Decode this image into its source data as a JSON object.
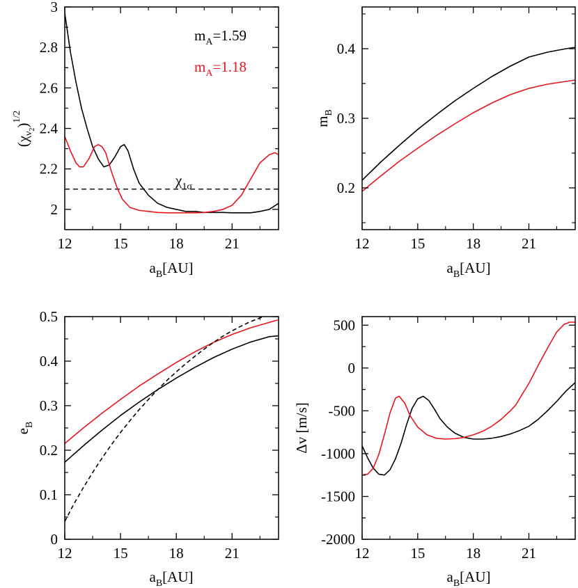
{
  "colors": {
    "black": "#000000",
    "red": "#e8141c"
  },
  "chart_data": [
    {
      "id": "chi",
      "type": "line",
      "xlabel": {
        "main": "a",
        "sub": "B",
        "rest": "[AU]"
      },
      "ylabel": {
        "open": "(χ",
        "sub": "ν",
        "subsub": "2",
        "close": ")",
        "sup": "1/2"
      },
      "xlim": [
        12,
        23.5
      ],
      "ylim": [
        1.9,
        3.0
      ],
      "xticks": [
        12,
        15,
        18,
        21
      ],
      "xtick_labels": [
        "12",
        "15",
        "18",
        "21"
      ],
      "yticks": [
        2.0,
        2.2,
        2.4,
        2.6,
        2.8,
        3.0
      ],
      "ytick_labels": [
        "2",
        "2.2",
        "2.4",
        "2.6",
        "2.8",
        "3"
      ],
      "legend": [
        {
          "main": "m",
          "sub": "A",
          "rest": "=1.59",
          "color": "black"
        },
        {
          "main": "m",
          "sub": "A",
          "rest": "=1.18",
          "color": "red"
        }
      ],
      "reference": {
        "label_main": "χ",
        "label_sub": "1σ",
        "y": 2.1
      },
      "series": [
        {
          "name": "m_A=1.59",
          "color": "black",
          "style": "solid",
          "points": [
            [
              12.0,
              2.97
            ],
            [
              12.3,
              2.78
            ],
            [
              12.6,
              2.63
            ],
            [
              12.9,
              2.5
            ],
            [
              13.2,
              2.4
            ],
            [
              13.5,
              2.31
            ],
            [
              13.8,
              2.25
            ],
            [
              14.1,
              2.21
            ],
            [
              14.4,
              2.22
            ],
            [
              14.7,
              2.26
            ],
            [
              15.0,
              2.31
            ],
            [
              15.2,
              2.32
            ],
            [
              15.4,
              2.29
            ],
            [
              15.7,
              2.2
            ],
            [
              16.0,
              2.13
            ],
            [
              16.5,
              2.07
            ],
            [
              17.0,
              2.03
            ],
            [
              17.5,
              2.01
            ],
            [
              18.0,
              2.0
            ],
            [
              18.5,
              1.99
            ],
            [
              19.0,
              1.99
            ],
            [
              19.5,
              1.985
            ],
            [
              20.0,
              1.985
            ],
            [
              20.5,
              1.985
            ],
            [
              21.0,
              1.983
            ],
            [
              21.5,
              1.983
            ],
            [
              22.0,
              1.983
            ],
            [
              22.5,
              1.99
            ],
            [
              23.0,
              2.0
            ],
            [
              23.5,
              2.03
            ]
          ]
        },
        {
          "name": "m_A=1.18",
          "color": "red",
          "style": "solid",
          "points": [
            [
              12.0,
              2.36
            ],
            [
              12.3,
              2.29
            ],
            [
              12.6,
              2.23
            ],
            [
              12.8,
              2.21
            ],
            [
              13.0,
              2.21
            ],
            [
              13.3,
              2.25
            ],
            [
              13.6,
              2.31
            ],
            [
              13.8,
              2.32
            ],
            [
              14.0,
              2.31
            ],
            [
              14.2,
              2.28
            ],
            [
              14.5,
              2.19
            ],
            [
              14.8,
              2.11
            ],
            [
              15.1,
              2.05
            ],
            [
              15.5,
              2.01
            ],
            [
              16.0,
              1.995
            ],
            [
              16.5,
              1.99
            ],
            [
              17.0,
              1.985
            ],
            [
              17.5,
              1.983
            ],
            [
              18.0,
              1.983
            ],
            [
              18.5,
              1.983
            ],
            [
              19.0,
              1.983
            ],
            [
              19.5,
              1.985
            ],
            [
              20.0,
              1.99
            ],
            [
              20.5,
              2.0
            ],
            [
              21.0,
              2.02
            ],
            [
              21.5,
              2.07
            ],
            [
              22.0,
              2.15
            ],
            [
              22.5,
              2.23
            ],
            [
              23.0,
              2.27
            ],
            [
              23.3,
              2.28
            ],
            [
              23.5,
              2.27
            ]
          ]
        }
      ]
    },
    {
      "id": "mB",
      "type": "line",
      "xlabel": {
        "main": "a",
        "sub": "B",
        "rest": "[AU]"
      },
      "ylabel": {
        "main": "m",
        "sub": "B"
      },
      "xlim": [
        12,
        23.5
      ],
      "ylim": [
        0.14,
        0.46
      ],
      "xticks": [
        12,
        15,
        18,
        21
      ],
      "xtick_labels": [
        "12",
        "15",
        "18",
        "21"
      ],
      "yticks": [
        0.2,
        0.3,
        0.4
      ],
      "ytick_labels": [
        "0.2",
        "0.3",
        "0.4"
      ],
      "series": [
        {
          "name": "m_A=1.59",
          "color": "black",
          "style": "solid",
          "points": [
            [
              12.0,
              0.211
            ],
            [
              13.0,
              0.237
            ],
            [
              14.0,
              0.261
            ],
            [
              15.0,
              0.284
            ],
            [
              16.0,
              0.305
            ],
            [
              17.0,
              0.325
            ],
            [
              18.0,
              0.343
            ],
            [
              19.0,
              0.36
            ],
            [
              20.0,
              0.375
            ],
            [
              21.0,
              0.388
            ],
            [
              22.0,
              0.395
            ],
            [
              23.0,
              0.4
            ],
            [
              23.5,
              0.402
            ]
          ]
        },
        {
          "name": "m_A=1.18",
          "color": "red",
          "style": "solid",
          "points": [
            [
              12.0,
              0.195
            ],
            [
              13.0,
              0.217
            ],
            [
              14.0,
              0.238
            ],
            [
              15.0,
              0.257
            ],
            [
              16.0,
              0.275
            ],
            [
              17.0,
              0.292
            ],
            [
              18.0,
              0.308
            ],
            [
              19.0,
              0.322
            ],
            [
              20.0,
              0.334
            ],
            [
              21.0,
              0.343
            ],
            [
              22.0,
              0.349
            ],
            [
              23.0,
              0.353
            ],
            [
              23.5,
              0.355
            ]
          ]
        }
      ]
    },
    {
      "id": "eB",
      "type": "line",
      "xlabel": {
        "main": "a",
        "sub": "B",
        "rest": "[AU]"
      },
      "ylabel": {
        "main": "e",
        "sub": "B"
      },
      "xlim": [
        12,
        23.5
      ],
      "ylim": [
        0,
        0.5
      ],
      "xticks": [
        12,
        15,
        18,
        21
      ],
      "xtick_labels": [
        "12",
        "15",
        "18",
        "21"
      ],
      "yticks": [
        0,
        0.1,
        0.2,
        0.3,
        0.4,
        0.5
      ],
      "ytick_labels": [
        "0",
        "0.1",
        "0.2",
        "0.3",
        "0.4",
        "0.5"
      ],
      "series": [
        {
          "name": "m_A=1.59",
          "color": "black",
          "style": "solid",
          "points": [
            [
              12.0,
              0.173
            ],
            [
              13.0,
              0.21
            ],
            [
              14.0,
              0.245
            ],
            [
              15.0,
              0.278
            ],
            [
              16.0,
              0.308
            ],
            [
              17.0,
              0.336
            ],
            [
              18.0,
              0.362
            ],
            [
              19.0,
              0.386
            ],
            [
              20.0,
              0.408
            ],
            [
              21.0,
              0.427
            ],
            [
              22.0,
              0.443
            ],
            [
              23.0,
              0.455
            ],
            [
              23.5,
              0.457
            ]
          ]
        },
        {
          "name": "m_A=1.18",
          "color": "red",
          "style": "solid",
          "points": [
            [
              12.0,
              0.215
            ],
            [
              13.0,
              0.25
            ],
            [
              14.0,
              0.283
            ],
            [
              15.0,
              0.314
            ],
            [
              16.0,
              0.344
            ],
            [
              17.0,
              0.371
            ],
            [
              18.0,
              0.397
            ],
            [
              19.0,
              0.421
            ],
            [
              20.0,
              0.442
            ],
            [
              21.0,
              0.46
            ],
            [
              22.0,
              0.475
            ],
            [
              23.0,
              0.487
            ],
            [
              23.5,
              0.493
            ]
          ]
        },
        {
          "name": "dashed",
          "color": "black",
          "style": "dashed",
          "points": [
            [
              12.0,
              0.04
            ],
            [
              12.5,
              0.08
            ],
            [
              13.0,
              0.116
            ],
            [
              13.5,
              0.15
            ],
            [
              14.0,
              0.182
            ],
            [
              14.5,
              0.212
            ],
            [
              15.0,
              0.24
            ],
            [
              15.5,
              0.266
            ],
            [
              16.0,
              0.291
            ],
            [
              16.5,
              0.314
            ],
            [
              17.0,
              0.336
            ],
            [
              17.5,
              0.357
            ],
            [
              18.0,
              0.376
            ],
            [
              18.5,
              0.394
            ],
            [
              19.0,
              0.411
            ],
            [
              19.5,
              0.427
            ],
            [
              20.0,
              0.442
            ],
            [
              20.5,
              0.456
            ],
            [
              21.0,
              0.468
            ],
            [
              21.5,
              0.479
            ],
            [
              22.0,
              0.489
            ],
            [
              22.5,
              0.497
            ],
            [
              22.7,
              0.5
            ]
          ]
        }
      ]
    },
    {
      "id": "dv",
      "type": "line",
      "xlabel": {
        "main": "a",
        "sub": "B",
        "rest": "[AU]"
      },
      "ylabel": {
        "main": "Δv [m/s]"
      },
      "xlim": [
        12,
        23.5
      ],
      "ylim": [
        -2000,
        600
      ],
      "xticks": [
        12,
        15,
        18,
        21
      ],
      "xtick_labels": [
        "12",
        "15",
        "18",
        "21"
      ],
      "yticks": [
        -2000,
        -1500,
        -1000,
        -500,
        0,
        500
      ],
      "ytick_labels": [
        "-2000",
        "-1500",
        "-1000",
        "-500",
        "0",
        "500"
      ],
      "series": [
        {
          "name": "m_A=1.59",
          "color": "black",
          "style": "solid",
          "points": [
            [
              12.0,
              -910
            ],
            [
              12.3,
              -1050
            ],
            [
              12.6,
              -1170
            ],
            [
              12.9,
              -1240
            ],
            [
              13.2,
              -1250
            ],
            [
              13.5,
              -1190
            ],
            [
              13.8,
              -1060
            ],
            [
              14.1,
              -880
            ],
            [
              14.4,
              -660
            ],
            [
              14.7,
              -470
            ],
            [
              15.0,
              -360
            ],
            [
              15.3,
              -330
            ],
            [
              15.6,
              -380
            ],
            [
              15.9,
              -480
            ],
            [
              16.2,
              -590
            ],
            [
              16.6,
              -690
            ],
            [
              17.0,
              -760
            ],
            [
              17.5,
              -810
            ],
            [
              18.0,
              -830
            ],
            [
              18.5,
              -830
            ],
            [
              19.0,
              -820
            ],
            [
              19.5,
              -800
            ],
            [
              20.0,
              -770
            ],
            [
              20.5,
              -730
            ],
            [
              21.0,
              -680
            ],
            [
              21.5,
              -600
            ],
            [
              22.0,
              -500
            ],
            [
              22.5,
              -390
            ],
            [
              23.0,
              -270
            ],
            [
              23.5,
              -170
            ]
          ]
        },
        {
          "name": "m_A=1.18",
          "color": "red",
          "style": "solid",
          "points": [
            [
              12.0,
              -1250
            ],
            [
              12.3,
              -1240
            ],
            [
              12.6,
              -1170
            ],
            [
              12.9,
              -1010
            ],
            [
              13.2,
              -780
            ],
            [
              13.5,
              -530
            ],
            [
              13.8,
              -350
            ],
            [
              14.0,
              -330
            ],
            [
              14.3,
              -410
            ],
            [
              14.6,
              -560
            ],
            [
              15.0,
              -690
            ],
            [
              15.5,
              -780
            ],
            [
              16.0,
              -820
            ],
            [
              16.5,
              -830
            ],
            [
              17.0,
              -825
            ],
            [
              17.5,
              -810
            ],
            [
              18.0,
              -780
            ],
            [
              18.5,
              -740
            ],
            [
              19.0,
              -680
            ],
            [
              19.5,
              -600
            ],
            [
              20.0,
              -500
            ],
            [
              20.3,
              -430
            ],
            [
              20.6,
              -320
            ],
            [
              21.0,
              -180
            ],
            [
              21.5,
              30
            ],
            [
              22.0,
              230
            ],
            [
              22.5,
              420
            ],
            [
              22.9,
              510
            ],
            [
              23.2,
              535
            ],
            [
              23.5,
              535
            ]
          ]
        }
      ]
    }
  ]
}
